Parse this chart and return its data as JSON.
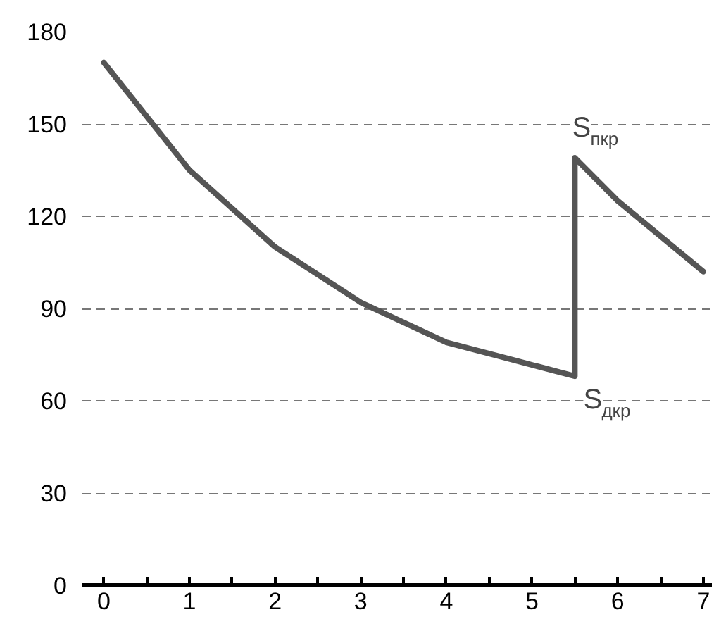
{
  "chart_data": {
    "type": "line",
    "series": [
      {
        "color": "#555555",
        "x": [
          0,
          1,
          2,
          3,
          4,
          5.5,
          5.5,
          6,
          7
        ],
        "values": [
          170,
          135,
          110,
          92,
          79,
          68,
          139,
          125,
          102
        ]
      }
    ],
    "xlim": [
      -0.25,
      7.1
    ],
    "ylim": [
      0,
      180
    ],
    "xticks": [
      0,
      {
        "value": 0.5,
        "label": null
      },
      1,
      {
        "value": 1.5,
        "label": null
      },
      2,
      {
        "value": 2.5,
        "label": null
      },
      3,
      {
        "value": 3.5,
        "label": null
      },
      4,
      {
        "value": 4.5,
        "label": null
      },
      5,
      {
        "value": 5.5,
        "label": null
      },
      6,
      {
        "value": 6.5,
        "label": null
      },
      7
    ],
    "yticks": [
      0,
      30,
      60,
      90,
      120,
      150,
      180
    ],
    "grid": "y",
    "line_style": "solid",
    "annotations": [
      {
        "text": "S$_{пкр}$",
        "x": 5.5,
        "y": 139
      },
      {
        "text": "S$_{дкр}$",
        "x": 5.5,
        "y": 68
      }
    ]
  }
}
